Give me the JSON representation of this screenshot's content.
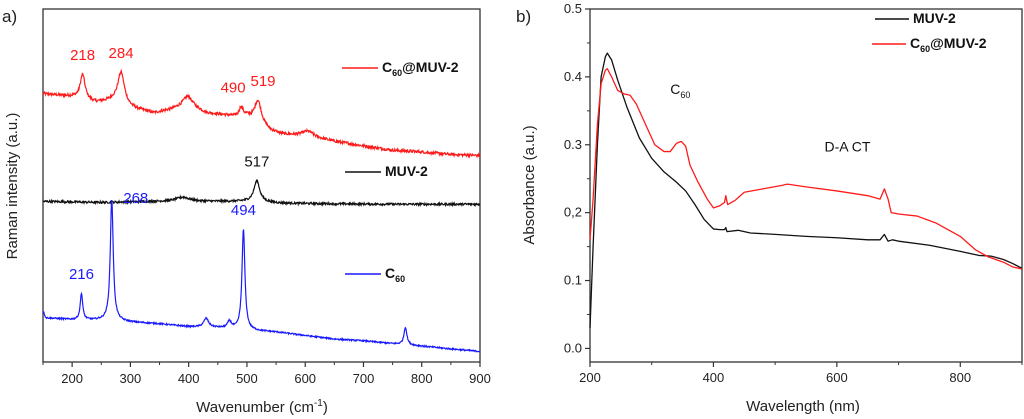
{
  "chart_data": [
    {
      "panel_label": "a)",
      "type": "line",
      "title": "",
      "xlabel": "Wavenumber (cm",
      "xlabel_sup": "-1",
      "xlabel_end": ")",
      "ylabel": "Raman intensity (a.u.)",
      "xlim": [
        150,
        900
      ],
      "ylim": [
        0,
        1
      ],
      "x_ticks": [
        200,
        300,
        400,
        500,
        600,
        700,
        800,
        900
      ],
      "x_minor_ticks": [
        150,
        250,
        350,
        450,
        550,
        650,
        750,
        850
      ],
      "y_ticks_shown": false,
      "grid": false,
      "stacked_offset": true,
      "series": [
        {
          "name": "C60@MUV-2",
          "legend_main": "C",
          "legend_sub": "60",
          "legend_rest": "@MUV-2",
          "color": "#ff1a1a",
          "baseline_points": [
            [
              150,
              0.76
            ],
            [
              180,
              0.755
            ],
            [
              200,
              0.752
            ],
            [
              240,
              0.735
            ],
            [
              270,
              0.74
            ],
            [
              300,
              0.72
            ],
            [
              340,
              0.705
            ],
            [
              370,
              0.715
            ],
            [
              400,
              0.728
            ],
            [
              430,
              0.705
            ],
            [
              460,
              0.7
            ],
            [
              480,
              0.695
            ],
            [
              500,
              0.695
            ],
            [
              540,
              0.655
            ],
            [
              560,
              0.645
            ],
            [
              600,
              0.64
            ],
            [
              650,
              0.625
            ],
            [
              700,
              0.612
            ],
            [
              750,
              0.6
            ],
            [
              800,
              0.595
            ],
            [
              850,
              0.588
            ],
            [
              900,
              0.585
            ]
          ],
          "peaks": [
            {
              "x": 218,
              "height": 0.07,
              "width": 5
            },
            {
              "x": 284,
              "height": 0.09,
              "width": 7
            },
            {
              "x": 398,
              "height": 0.025,
              "width": 10
            },
            {
              "x": 490,
              "height": 0.025,
              "width": 4
            },
            {
              "x": 519,
              "height": 0.065,
              "width": 7
            },
            {
              "x": 605,
              "height": 0.015,
              "width": 12
            }
          ],
          "noise": 0.004,
          "peak_labels": [
            {
              "text": "218",
              "x": 218
            },
            {
              "text": "284",
              "x": 284
            },
            {
              "text": "490",
              "x": 490
            },
            {
              "text": "519",
              "x": 519
            }
          ]
        },
        {
          "name": "MUV-2",
          "legend_main": "MUV-2",
          "legend_sub": "",
          "legend_rest": "",
          "color": "#111111",
          "baseline_points": [
            [
              150,
              0.455
            ],
            [
              250,
              0.452
            ],
            [
              350,
              0.455
            ],
            [
              450,
              0.455
            ],
            [
              500,
              0.455
            ],
            [
              560,
              0.45
            ],
            [
              650,
              0.448
            ],
            [
              750,
              0.447
            ],
            [
              900,
              0.447
            ]
          ],
          "peaks": [
            {
              "x": 390,
              "height": 0.012,
              "width": 14
            },
            {
              "x": 517,
              "height": 0.06,
              "width": 6
            }
          ],
          "noise": 0.003,
          "peak_labels": [
            {
              "text": "517",
              "x": 517
            }
          ]
        },
        {
          "name": "C60",
          "legend_main": "C",
          "legend_sub": "60",
          "legend_rest": "",
          "color": "#1a1aff",
          "baseline_points": [
            [
              150,
              0.145
            ],
            [
              155,
              0.125
            ],
            [
              200,
              0.12
            ],
            [
              260,
              0.118
            ],
            [
              300,
              0.113
            ],
            [
              350,
              0.108
            ],
            [
              400,
              0.1
            ],
            [
              450,
              0.097
            ],
            [
              500,
              0.09
            ],
            [
              550,
              0.085
            ],
            [
              600,
              0.075
            ],
            [
              650,
              0.065
            ],
            [
              700,
              0.06
            ],
            [
              750,
              0.052
            ],
            [
              800,
              0.045
            ],
            [
              850,
              0.037
            ],
            [
              900,
              0.03
            ]
          ],
          "peaks": [
            {
              "x": 216,
              "height": 0.075,
              "width": 2.5
            },
            {
              "x": 268,
              "height": 0.345,
              "width": 3
            },
            {
              "x": 430,
              "height": 0.025,
              "width": 5
            },
            {
              "x": 470,
              "height": 0.02,
              "width": 4
            },
            {
              "x": 494,
              "height": 0.285,
              "width": 3
            },
            {
              "x": 772,
              "height": 0.05,
              "width": 3
            }
          ],
          "noise": 0.002,
          "peak_labels": [
            {
              "text": "216",
              "x": 216
            },
            {
              "text": "268",
              "x": 268
            },
            {
              "text": "494",
              "x": 494
            }
          ]
        }
      ]
    },
    {
      "panel_label": "b)",
      "type": "line",
      "title": "",
      "xlabel": "Wavelength (nm)",
      "ylabel": "Absorbance (a.u.)",
      "xlim": [
        200,
        900
      ],
      "ylim": [
        -0.02,
        0.5
      ],
      "x_ticks": [
        200,
        400,
        600,
        800
      ],
      "x_tick_labels": [
        "200",
        "400",
        "600",
        "800"
      ],
      "x_minor_ticks": [
        300,
        500,
        700,
        900
      ],
      "y_ticks": [
        0.0,
        0.1,
        0.2,
        0.3,
        0.4,
        0.5
      ],
      "y_tick_labels": [
        "0.0",
        "0.1",
        "0,2",
        "0.3",
        "0.4",
        "0.5"
      ],
      "y_minor_ticks": [
        0.05,
        0.15,
        0.25,
        0.35,
        0.45
      ],
      "grid": false,
      "legend_position": "top-right",
      "annotations": [
        {
          "text": "C",
          "sub": "60",
          "x": 330,
          "y": 0.375
        },
        {
          "text": "D-A CT",
          "x": 580,
          "y": 0.29
        }
      ],
      "series": [
        {
          "name": "MUV-2",
          "legend_main": "MUV-2",
          "legend_sub": "",
          "legend_rest": "",
          "color": "#111111",
          "points": [
            [
              200,
              0.03
            ],
            [
              205,
              0.15
            ],
            [
              212,
              0.3
            ],
            [
              218,
              0.4
            ],
            [
              225,
              0.43
            ],
            [
              228,
              0.435
            ],
            [
              235,
              0.425
            ],
            [
              245,
              0.395
            ],
            [
              260,
              0.355
            ],
            [
              280,
              0.31
            ],
            [
              300,
              0.28
            ],
            [
              320,
              0.26
            ],
            [
              340,
              0.245
            ],
            [
              355,
              0.232
            ],
            [
              370,
              0.212
            ],
            [
              385,
              0.19
            ],
            [
              400,
              0.176
            ],
            [
              410,
              0.175
            ],
            [
              418,
              0.175
            ],
            [
              420,
              0.178
            ],
            [
              422,
              0.172
            ],
            [
              440,
              0.174
            ],
            [
              460,
              0.17
            ],
            [
              500,
              0.168
            ],
            [
              550,
              0.165
            ],
            [
              600,
              0.163
            ],
            [
              650,
              0.16
            ],
            [
              670,
              0.16
            ],
            [
              677,
              0.168
            ],
            [
              683,
              0.158
            ],
            [
              690,
              0.16
            ],
            [
              700,
              0.158
            ],
            [
              750,
              0.152
            ],
            [
              800,
              0.143
            ],
            [
              830,
              0.137
            ],
            [
              850,
              0.136
            ],
            [
              870,
              0.131
            ],
            [
              885,
              0.125
            ],
            [
              900,
              0.118
            ]
          ]
        },
        {
          "name": "C60@MUV-2",
          "legend_main": "C",
          "legend_sub": "60",
          "legend_rest": "@MUV-2",
          "color": "#ff1a1a",
          "points": [
            [
              200,
              0.16
            ],
            [
              205,
              0.22
            ],
            [
              212,
              0.33
            ],
            [
              218,
              0.39
            ],
            [
              225,
              0.41
            ],
            [
              228,
              0.412
            ],
            [
              235,
              0.4
            ],
            [
              245,
              0.38
            ],
            [
              255,
              0.375
            ],
            [
              265,
              0.373
            ],
            [
              275,
              0.36
            ],
            [
              290,
              0.33
            ],
            [
              305,
              0.3
            ],
            [
              320,
              0.29
            ],
            [
              330,
              0.29
            ],
            [
              340,
              0.302
            ],
            [
              348,
              0.305
            ],
            [
              355,
              0.298
            ],
            [
              362,
              0.27
            ],
            [
              375,
              0.245
            ],
            [
              390,
              0.22
            ],
            [
              400,
              0.207
            ],
            [
              410,
              0.21
            ],
            [
              418,
              0.215
            ],
            [
              420,
              0.225
            ],
            [
              423,
              0.212
            ],
            [
              435,
              0.218
            ],
            [
              450,
              0.23
            ],
            [
              480,
              0.235
            ],
            [
              510,
              0.24
            ],
            [
              520,
              0.242
            ],
            [
              550,
              0.238
            ],
            [
              600,
              0.232
            ],
            [
              650,
              0.225
            ],
            [
              670,
              0.22
            ],
            [
              677,
              0.235
            ],
            [
              683,
              0.22
            ],
            [
              688,
              0.2
            ],
            [
              700,
              0.198
            ],
            [
              730,
              0.195
            ],
            [
              760,
              0.185
            ],
            [
              800,
              0.165
            ],
            [
              825,
              0.145
            ],
            [
              845,
              0.135
            ],
            [
              870,
              0.127
            ],
            [
              885,
              0.12
            ],
            [
              900,
              0.117
            ]
          ]
        }
      ]
    }
  ]
}
